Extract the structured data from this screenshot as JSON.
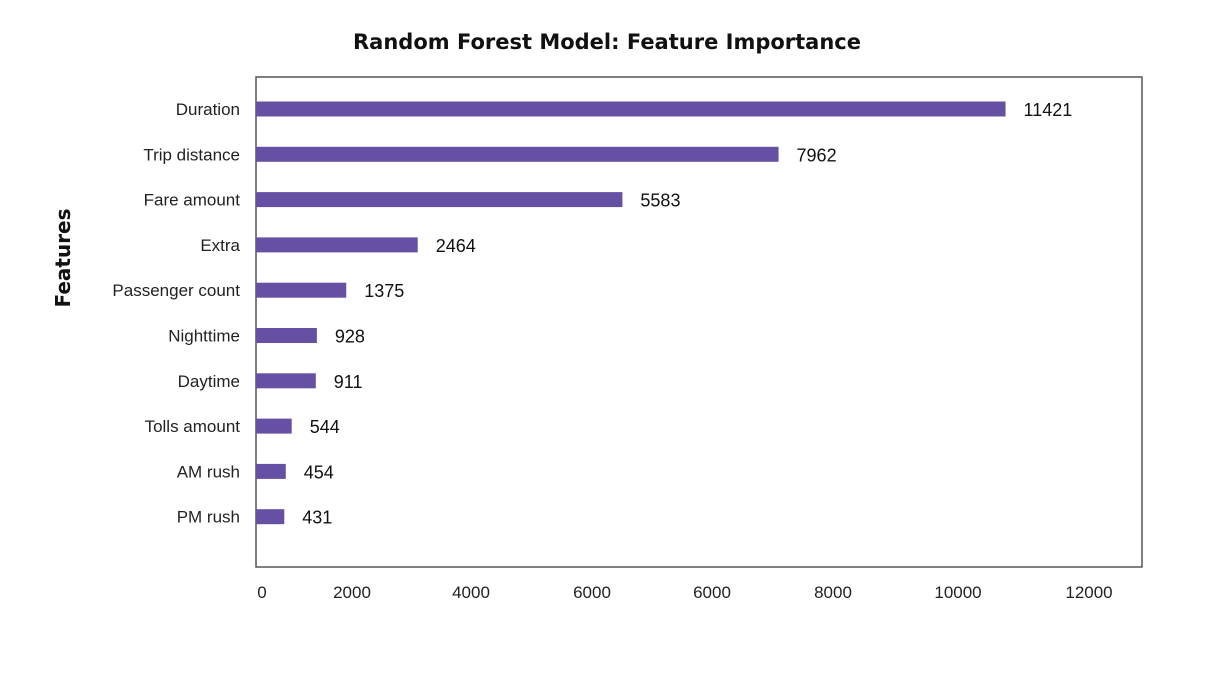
{
  "chart_data": {
    "type": "bar",
    "orientation": "horizontal",
    "title": "Random Forest Model: Feature Importance",
    "xlabel": "",
    "ylabel": "Features",
    "categories": [
      "Duration",
      "Trip distance",
      "Fare amount",
      "Extra",
      "Passenger count",
      "Nighttime",
      "Daytime",
      "Tolls amount",
      "AM rush",
      "PM rush"
    ],
    "values": [
      11421,
      7962,
      5583,
      2464,
      1375,
      928,
      911,
      544,
      454,
      431
    ],
    "data_labels": [
      "11421",
      "7962",
      "5583",
      "2464",
      "1375",
      "928",
      "911",
      "544",
      "454",
      "431"
    ],
    "x_tick_labels": [
      "0",
      "2000",
      "4000",
      "6000",
      "6000",
      "8000",
      "10000",
      "12000"
    ],
    "xlim": [
      0,
      13500
    ],
    "grid": false,
    "legend": "none",
    "bar_color": "#6650a4"
  }
}
